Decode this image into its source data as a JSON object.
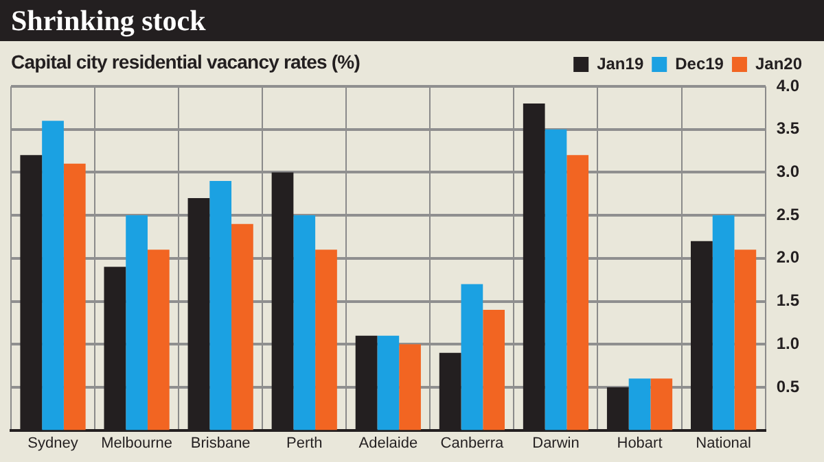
{
  "chart_data": {
    "type": "bar",
    "title": "Shrinking stock",
    "subtitle": "Capital city residential vacancy rates (%)",
    "categories": [
      "Sydney",
      "Melbourne",
      "Brisbane",
      "Perth",
      "Adelaide",
      "Canberra",
      "Darwin",
      "Hobart",
      "National"
    ],
    "series": [
      {
        "name": "Jan19",
        "color": "#231f20",
        "values": [
          3.2,
          1.9,
          2.7,
          3.0,
          1.1,
          0.9,
          3.8,
          0.5,
          2.2
        ]
      },
      {
        "name": "Dec19",
        "color": "#1ba1e2",
        "values": [
          3.6,
          2.5,
          2.9,
          2.5,
          1.1,
          1.7,
          3.5,
          0.6,
          2.5
        ]
      },
      {
        "name": "Jan20",
        "color": "#f26522",
        "values": [
          3.1,
          2.1,
          2.4,
          2.1,
          1.0,
          1.4,
          3.2,
          0.6,
          2.1
        ]
      }
    ],
    "ylim": [
      0,
      4
    ],
    "yticks": [
      {
        "value": 0.5,
        "label": "0.5"
      },
      {
        "value": 1,
        "label": "1.0"
      },
      {
        "value": 1.5,
        "label": "1.5"
      },
      {
        "value": 2,
        "label": "2.0"
      },
      {
        "value": 2.5,
        "label": "2.5"
      },
      {
        "value": 3,
        "label": "3.0"
      },
      {
        "value": 3.5,
        "label": "3.5"
      },
      {
        "value": 4,
        "label": "4.0"
      }
    ],
    "grid": true,
    "legend": "top right"
  }
}
